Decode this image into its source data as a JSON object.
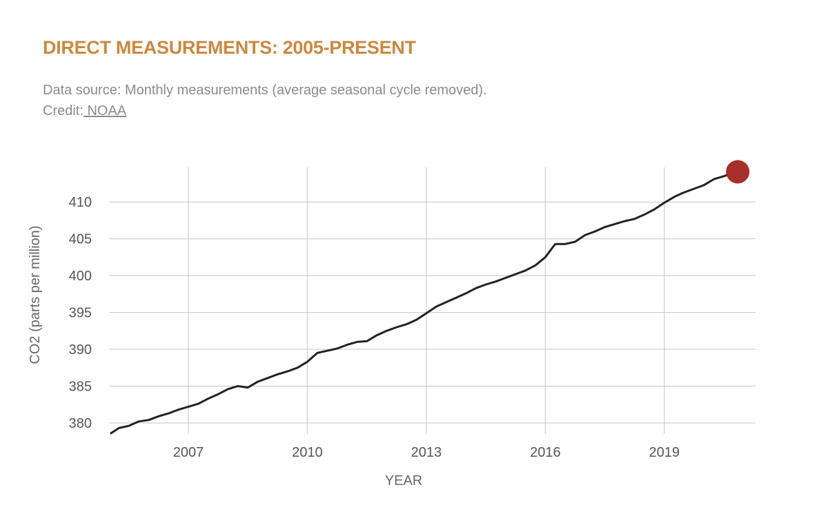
{
  "header": {
    "title": "DIRECT MEASUREMENTS: 2005-PRESENT",
    "subtitle": "Data source: Monthly measurements (average seasonal cycle removed). Credit:",
    "credit_link": " NOAA"
  },
  "colors": {
    "title": "#c8893f",
    "line": "#222222",
    "marker": "#a8302a",
    "grid": "#c4c4c4"
  },
  "chart_data": {
    "type": "line",
    "xlabel": "YEAR",
    "ylabel": "CO2 (parts per million)",
    "xlim": [
      2005.0,
      2021.3
    ],
    "ylim": [
      378.5,
      414.7
    ],
    "x_ticks": [
      2007,
      2010,
      2013,
      2016,
      2019
    ],
    "y_ticks": [
      380,
      385,
      390,
      395,
      400,
      405,
      410
    ],
    "grid": true,
    "series": [
      {
        "points": [
          [
            2005.05,
            378.6
          ],
          [
            2005.25,
            379.3
          ],
          [
            2005.5,
            379.6
          ],
          [
            2005.75,
            380.2
          ],
          [
            2006.0,
            380.4
          ],
          [
            2006.25,
            380.9
          ],
          [
            2006.5,
            381.3
          ],
          [
            2006.75,
            381.8
          ],
          [
            2007.0,
            382.2
          ],
          [
            2007.25,
            382.6
          ],
          [
            2007.5,
            383.3
          ],
          [
            2007.75,
            383.9
          ],
          [
            2008.0,
            384.6
          ],
          [
            2008.25,
            385.0
          ],
          [
            2008.5,
            384.8
          ],
          [
            2008.75,
            385.6
          ],
          [
            2009.0,
            386.1
          ],
          [
            2009.25,
            386.6
          ],
          [
            2009.5,
            387.0
          ],
          [
            2009.75,
            387.5
          ],
          [
            2010.0,
            388.3
          ],
          [
            2010.25,
            389.5
          ],
          [
            2010.5,
            389.8
          ],
          [
            2010.75,
            390.1
          ],
          [
            2011.0,
            390.6
          ],
          [
            2011.25,
            391.0
          ],
          [
            2011.5,
            391.1
          ],
          [
            2011.75,
            391.9
          ],
          [
            2012.0,
            392.5
          ],
          [
            2012.25,
            393.0
          ],
          [
            2012.5,
            393.4
          ],
          [
            2012.75,
            394.0
          ],
          [
            2013.0,
            394.9
          ],
          [
            2013.25,
            395.8
          ],
          [
            2013.5,
            396.4
          ],
          [
            2013.75,
            397.0
          ],
          [
            2014.0,
            397.6
          ],
          [
            2014.25,
            398.3
          ],
          [
            2014.5,
            398.8
          ],
          [
            2014.75,
            399.2
          ],
          [
            2015.0,
            399.7
          ],
          [
            2015.25,
            400.2
          ],
          [
            2015.5,
            400.7
          ],
          [
            2015.75,
            401.4
          ],
          [
            2016.0,
            402.5
          ],
          [
            2016.25,
            404.3
          ],
          [
            2016.5,
            404.3
          ],
          [
            2016.75,
            404.6
          ],
          [
            2017.0,
            405.5
          ],
          [
            2017.25,
            406.0
          ],
          [
            2017.5,
            406.6
          ],
          [
            2017.75,
            407.0
          ],
          [
            2018.0,
            407.4
          ],
          [
            2018.25,
            407.7
          ],
          [
            2018.5,
            408.3
          ],
          [
            2018.75,
            409.0
          ],
          [
            2019.0,
            409.9
          ],
          [
            2019.25,
            410.7
          ],
          [
            2019.5,
            411.3
          ],
          [
            2019.75,
            411.8
          ],
          [
            2020.0,
            412.3
          ],
          [
            2020.25,
            413.1
          ],
          [
            2020.5,
            413.5
          ],
          [
            2020.75,
            414.0
          ],
          [
            2020.85,
            414.1
          ]
        ]
      }
    ],
    "latest_point": {
      "x": 2020.85,
      "y": 414.1
    }
  }
}
